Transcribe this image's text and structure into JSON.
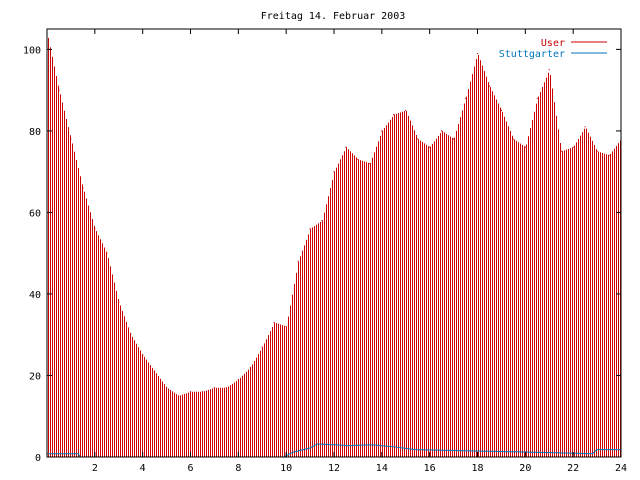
{
  "chart_data": {
    "type": "bar",
    "title": "Freitag 14. Februar 2003",
    "xlabel": "",
    "ylabel": "",
    "xlim": [
      0,
      24
    ],
    "ylim": [
      0,
      105
    ],
    "xticks": [
      2,
      4,
      6,
      8,
      10,
      12,
      14,
      16,
      18,
      20,
      22,
      24
    ],
    "yticks": [
      0,
      20,
      40,
      60,
      80,
      100
    ],
    "x_tick_labels": [
      "2",
      "4",
      "6",
      "8",
      "10",
      "12",
      "14",
      "16",
      "18",
      "20",
      "22",
      "24"
    ],
    "y_tick_labels": [
      "0",
      "20",
      "40",
      "60",
      "80",
      "100"
    ],
    "grid": false,
    "legend": "top-right",
    "colors": {
      "user": "#cc0000",
      "stuttgarter": "#0077bb"
    },
    "series": [
      {
        "name": "User",
        "type": "bar",
        "x": [
          0,
          0.5,
          1,
          1.5,
          2,
          2.5,
          3,
          3.5,
          4,
          4.5,
          5,
          5.5,
          6,
          6.5,
          7,
          7.5,
          8,
          8.5,
          9,
          9.5,
          10,
          10.5,
          11,
          11.5,
          12,
          12.5,
          13,
          13.5,
          14,
          14.5,
          15,
          15.5,
          16,
          16.5,
          17,
          17.5,
          18,
          18.5,
          19,
          19.5,
          20,
          20.5,
          21,
          21.5,
          22,
          22.5,
          23,
          23.5,
          24
        ],
        "values": [
          104,
          90,
          78,
          66,
          56,
          50,
          38,
          30,
          25,
          21,
          17,
          15,
          16,
          16,
          17,
          17,
          19,
          22,
          27,
          33,
          32,
          48,
          56,
          58,
          70,
          76,
          73,
          72,
          80,
          84,
          85,
          78,
          76,
          80,
          78,
          88,
          99,
          91,
          85,
          78,
          76,
          88,
          95,
          75,
          76,
          81,
          75,
          74,
          78
        ]
      },
      {
        "name": "Stuttgarter",
        "type": "line",
        "x": [
          0,
          1.3,
          1.4,
          9.9,
          10.3,
          11.0,
          11.3,
          12.0,
          12.6,
          13.6,
          14.5,
          15.4,
          20.1,
          21.5,
          22.8,
          23.0,
          24
        ],
        "values": [
          0.8,
          0.8,
          0,
          0,
          1.2,
          2.2,
          3.2,
          3.0,
          2.8,
          3.0,
          2.5,
          1.8,
          1.2,
          1.0,
          0.8,
          1.8,
          1.8
        ]
      }
    ]
  }
}
